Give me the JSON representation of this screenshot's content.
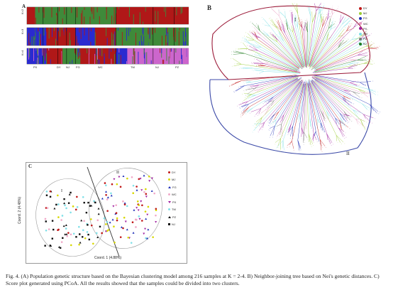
{
  "figure": {
    "caption": "Fig. 4. (A) Population genetic structure based on the Bayesian clustering model among 216 samples at K = 2-4. B) Neighbor-joining tree based on Nei's genetic distances. C) Score plot generated using PCoA. All the results showed that the samples could be divided into two clusters."
  },
  "panel_a": {
    "letter": "A",
    "row_labels": [
      "K=2",
      "K=3",
      "K=4"
    ],
    "population_labels": [
      "PX",
      "DY",
      "NJ",
      "FG",
      "WC",
      "TM",
      "NJ",
      "PZ"
    ],
    "colors": {
      "red": "#b01818",
      "green": "#3f8a3a",
      "blue": "#2a2ad0",
      "pink": "#cc66cc"
    }
  },
  "panel_b": {
    "letter": "B",
    "cluster_labels": [
      "I",
      "II"
    ],
    "legend": [
      {
        "label": "DY",
        "color": "#c01818"
      },
      {
        "label": "MJ",
        "color": "#9acd32"
      },
      {
        "label": "FG",
        "color": "#1f2fb8"
      },
      {
        "label": "WC",
        "color": "#e89ac0"
      },
      {
        "label": "PX",
        "color": "#a020a0"
      },
      {
        "label": "TM",
        "color": "#7fdfe6"
      },
      {
        "label": "PZ",
        "color": "#777777"
      },
      {
        "label": "NJ",
        "color": "#1f7a1f"
      }
    ],
    "frame_colors": {
      "cluster_one": "#9c1c3a",
      "cluster_two": "#3c4aa8"
    }
  },
  "panel_c": {
    "letter": "C",
    "cluster_labels": [
      "I",
      "II"
    ],
    "xlabel": "Coord. 1 (4.88%)",
    "ylabel": "Coord. 2 (4.48%)",
    "legend": [
      {
        "label": "DY",
        "color": "#c01818",
        "marker": "circle"
      },
      {
        "label": "MJ",
        "color": "#d8d800",
        "marker": "circle"
      },
      {
        "label": "FG",
        "color": "#1f2fb8",
        "marker": "triangle"
      },
      {
        "label": "WC",
        "color": "#f0a8c8",
        "marker": "circle"
      },
      {
        "label": "PX",
        "color": "#a020a0",
        "marker": "triangle-down"
      },
      {
        "label": "TM",
        "color": "#80e0e8",
        "marker": "circle"
      },
      {
        "label": "PZ",
        "color": "#111111",
        "marker": "triangle"
      },
      {
        "label": "NJ",
        "color": "#111111",
        "marker": "square"
      }
    ]
  }
}
